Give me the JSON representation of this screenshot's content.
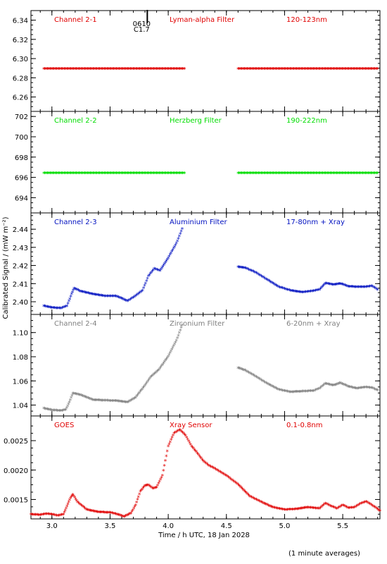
{
  "chart_data": {
    "type": "scatter",
    "xlabel": "Time / h UTC, 18 Jan 2028",
    "ylabel": "Calibrated Signal / (mW m⁻²)",
    "xlim": [
      2.82,
      5.82
    ],
    "xticks": [
      "3.0",
      "3.5",
      "4.0",
      "4.5",
      "5.0",
      "5.5"
    ],
    "xtick_values": [
      3.0,
      3.5,
      4.0,
      4.5,
      5.0,
      5.5
    ],
    "footnote": "(1 minute averages)",
    "event_marker": {
      "x": 3.82,
      "labels": [
        "0610",
        "C1.7"
      ]
    },
    "panels": [
      {
        "channel": "Channel 2-1",
        "filter": "Lyman-alpha Filter",
        "band": "120-123nm",
        "color": "#e00000",
        "ylim": [
          6.245,
          6.35
        ],
        "yticks": [
          "6.26",
          "6.28",
          "6.30",
          "6.32",
          "6.34"
        ],
        "ytick_values": [
          6.26,
          6.28,
          6.3,
          6.32,
          6.34
        ],
        "segments": [
          {
            "x": [
              2.93,
              4.14
            ],
            "y": [
              6.289,
              6.289
            ]
          },
          {
            "x": [
              4.6,
              5.8
            ],
            "y": [
              6.289,
              6.289
            ]
          }
        ]
      },
      {
        "channel": "Channel 2-2",
        "filter": "Herzberg Filter",
        "band": "190-222nm",
        "color": "#00dd00",
        "ylim": [
          692.5,
          702.5
        ],
        "yticks": [
          "694",
          "696",
          "698",
          "700",
          "702"
        ],
        "ytick_values": [
          694,
          696,
          698,
          700,
          702
        ],
        "segments": [
          {
            "x": [
              2.93,
              4.14
            ],
            "y": [
              696.4,
              696.4
            ]
          },
          {
            "x": [
              4.6,
              5.8
            ],
            "y": [
              696.4,
              696.4
            ]
          }
        ]
      },
      {
        "channel": "Channel 2-3",
        "filter": "Aluminium Filter",
        "band": "17-80nm + Xray",
        "color": "#0010c0",
        "ylim": [
          2.393,
          2.449
        ],
        "yticks": [
          "2.40",
          "2.41",
          "2.42",
          "2.43",
          "2.44"
        ],
        "ytick_values": [
          2.4,
          2.41,
          2.42,
          2.43,
          2.44
        ],
        "segments": [
          {
            "x": [
              2.93,
              3.0,
              3.08,
              3.13,
              3.17,
              3.19,
              3.25,
              3.35,
              3.45,
              3.55,
              3.65,
              3.7,
              3.78,
              3.83,
              3.88,
              3.93,
              4.0,
              4.07,
              4.12
            ],
            "y": [
              2.3975,
              2.3965,
              2.3962,
              2.3975,
              2.404,
              2.4072,
              2.4055,
              2.404,
              2.403,
              2.403,
              2.4002,
              2.4022,
              2.406,
              2.414,
              2.418,
              2.417,
              2.424,
              2.432,
              2.44
            ]
          },
          {
            "x": [
              4.6,
              4.66,
              4.75,
              4.85,
              4.95,
              5.05,
              5.15,
              5.25,
              5.3,
              5.35,
              5.42,
              5.48,
              5.55,
              5.62,
              5.7,
              5.75,
              5.8
            ],
            "y": [
              2.419,
              2.4185,
              2.416,
              2.412,
              2.408,
              2.406,
              2.405,
              2.4058,
              2.4065,
              2.41,
              2.4092,
              2.4098,
              2.4082,
              2.408,
              2.408,
              2.4085,
              2.4065
            ]
          }
        ]
      },
      {
        "channel": "Channel 2-4",
        "filter": "Zirconium Filter",
        "band": "6-20nm + Xray",
        "color": "#808080",
        "ylim": [
          1.031,
          1.115
        ],
        "yticks": [
          "1.04",
          "1.06",
          "1.08",
          "1.10"
        ],
        "ytick_values": [
          1.04,
          1.06,
          1.08,
          1.1
        ],
        "segments": [
          {
            "x": [
              2.93,
              3.0,
              3.08,
              3.12,
              3.15,
              3.18,
              3.25,
              3.35,
              3.45,
              3.55,
              3.65,
              3.72,
              3.8,
              3.85,
              3.92,
              4.0,
              4.07,
              4.12
            ],
            "y": [
              1.037,
              1.0355,
              1.035,
              1.036,
              1.042,
              1.0495,
              1.048,
              1.044,
              1.0435,
              1.0432,
              1.042,
              1.046,
              1.056,
              1.063,
              1.069,
              1.08,
              1.093,
              1.106
            ]
          },
          {
            "x": [
              4.6,
              4.66,
              4.75,
              4.85,
              4.95,
              5.05,
              5.15,
              5.25,
              5.3,
              5.35,
              5.42,
              5.48,
              5.55,
              5.62,
              5.7,
              5.75,
              5.8
            ],
            "y": [
              1.0705,
              1.0685,
              1.0635,
              1.0575,
              1.0525,
              1.0505,
              1.051,
              1.0515,
              1.0535,
              1.0575,
              1.056,
              1.058,
              1.055,
              1.0535,
              1.0545,
              1.054,
              1.052
            ]
          }
        ]
      },
      {
        "channel": "GOES",
        "filter": "Xray Sensor",
        "band": "0.1-0.8nm",
        "color": "#e00000",
        "ylim": [
          0.00117,
          0.00292
        ],
        "yticks": [
          "0.0015",
          "0.0020",
          "0.0025"
        ],
        "ytick_values": [
          0.0015,
          0.002,
          0.0025
        ],
        "segments": [
          {
            "x": [
              2.82,
              2.9,
              2.95,
              3.0,
              3.05,
              3.1,
              3.13,
              3.16,
              3.18,
              3.22,
              3.3,
              3.4,
              3.5,
              3.55,
              3.62,
              3.68,
              3.72,
              3.76,
              3.8,
              3.83,
              3.87,
              3.9,
              3.95,
              4.0,
              4.05,
              4.1,
              4.15,
              4.2,
              4.25,
              4.3,
              4.35,
              4.4,
              4.5,
              4.6,
              4.7,
              4.8,
              4.9,
              5.0,
              5.1,
              5.2,
              5.3,
              5.35,
              5.4,
              5.45,
              5.5,
              5.55,
              5.6,
              5.65,
              5.7,
              5.75,
              5.8,
              5.82
            ],
            "y": [
              0.00124,
              0.00123,
              0.00125,
              0.00124,
              0.00122,
              0.00124,
              0.00138,
              0.00152,
              0.00158,
              0.00145,
              0.00132,
              0.00128,
              0.00127,
              0.00125,
              0.0012,
              0.00126,
              0.0014,
              0.00163,
              0.00173,
              0.00174,
              0.00168,
              0.0017,
              0.0019,
              0.0024,
              0.00262,
              0.00268,
              0.00258,
              0.0024,
              0.00228,
              0.00215,
              0.00207,
              0.00202,
              0.0019,
              0.00175,
              0.00155,
              0.00145,
              0.00136,
              0.00132,
              0.00133,
              0.00136,
              0.00134,
              0.00143,
              0.00138,
              0.00134,
              0.0014,
              0.00135,
              0.00136,
              0.00142,
              0.00146,
              0.0014,
              0.00133,
              0.0013
            ]
          }
        ]
      }
    ]
  }
}
